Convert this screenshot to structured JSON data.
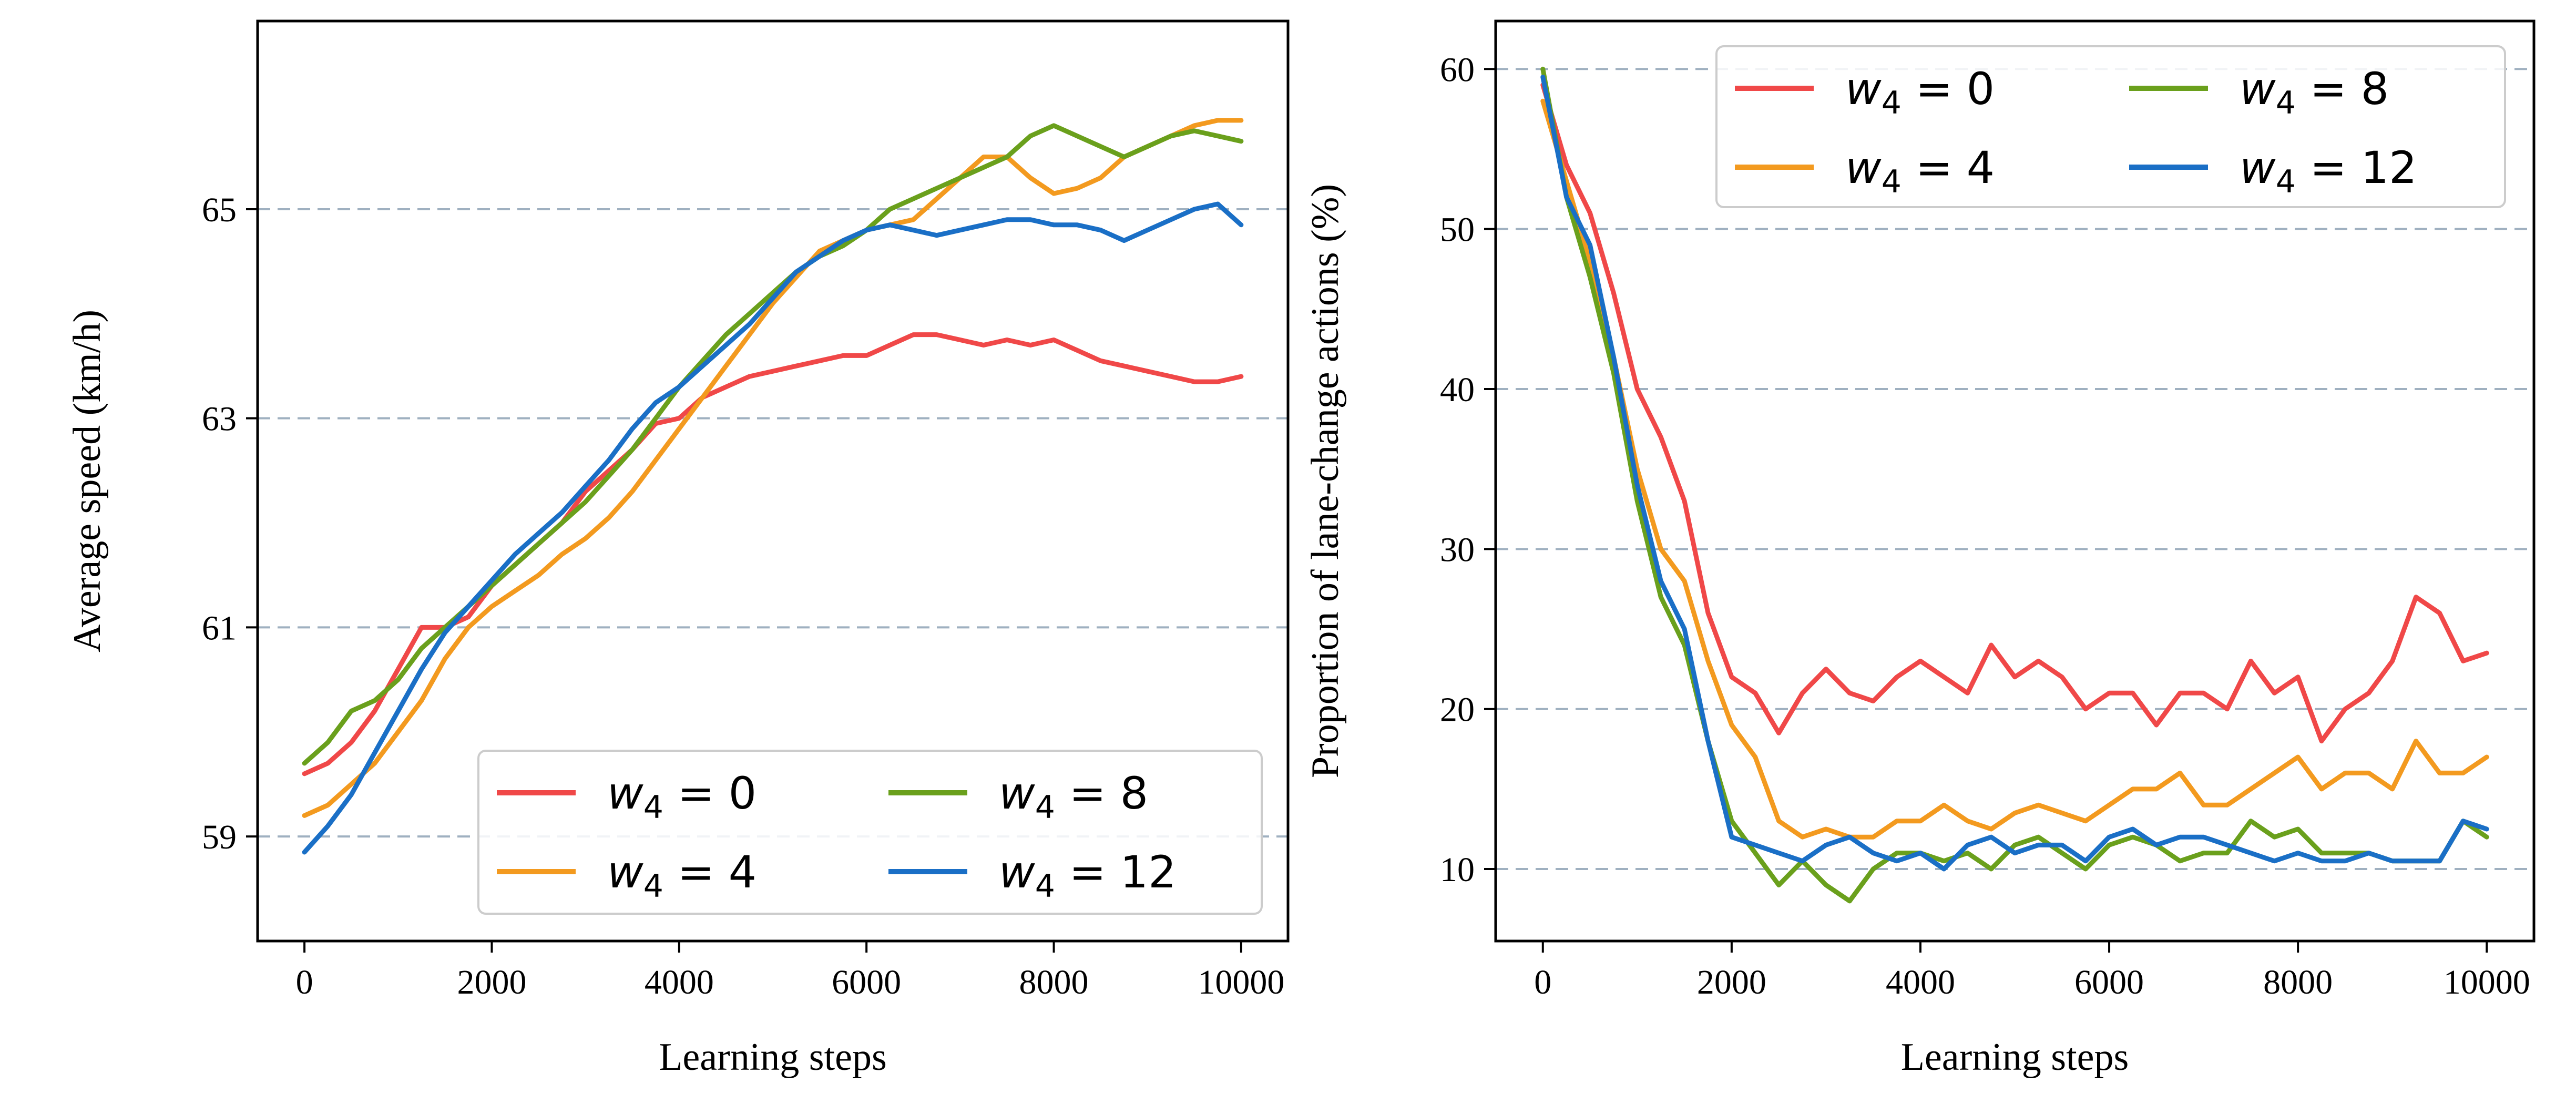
{
  "chart_data": [
    {
      "type": "line",
      "xlabel": "Learning steps",
      "ylabel": "Average speed (km/h)",
      "xlim": [
        -500,
        10500
      ],
      "ylim": [
        58.0,
        66.8
      ],
      "xticks": [
        0,
        2000,
        4000,
        6000,
        8000,
        10000
      ],
      "yticks": [
        59,
        61,
        63,
        65
      ],
      "grid": "horizontal dashed",
      "legend_position": "lower-right",
      "legend_columns": 2,
      "series": [
        {
          "name": "w4 = 0",
          "legend_base": "w",
          "legend_sub": "4",
          "legend_rest": " = 0",
          "color": "#f04848",
          "x": [
            0,
            250,
            500,
            750,
            1000,
            1250,
            1500,
            1750,
            2000,
            2250,
            2500,
            2750,
            3000,
            3250,
            3500,
            3750,
            4000,
            4250,
            4500,
            4750,
            5000,
            5250,
            5500,
            5750,
            6000,
            6250,
            6500,
            6750,
            7000,
            7250,
            7500,
            7750,
            8000,
            8250,
            8500,
            8750,
            9000,
            9250,
            9500,
            9750,
            10000
          ],
          "y": [
            59.6,
            59.7,
            59.9,
            60.2,
            60.6,
            61.0,
            61.0,
            61.1,
            61.4,
            61.6,
            61.8,
            62.0,
            62.3,
            62.5,
            62.7,
            62.95,
            63.0,
            63.2,
            63.3,
            63.4,
            63.45,
            63.5,
            63.55,
            63.6,
            63.6,
            63.7,
            63.8,
            63.8,
            63.75,
            63.7,
            63.75,
            63.7,
            63.75,
            63.65,
            63.55,
            63.5,
            63.45,
            63.4,
            63.35,
            63.35,
            63.4
          ]
        },
        {
          "name": "w4 = 4",
          "legend_base": "w",
          "legend_sub": "4",
          "legend_rest": " = 4",
          "color": "#f39a1f",
          "x": [
            0,
            250,
            500,
            750,
            1000,
            1250,
            1500,
            1750,
            2000,
            2250,
            2500,
            2750,
            3000,
            3250,
            3500,
            3750,
            4000,
            4250,
            4500,
            4750,
            5000,
            5250,
            5500,
            5750,
            6000,
            6250,
            6500,
            6750,
            7000,
            7250,
            7500,
            7750,
            8000,
            8250,
            8500,
            8750,
            9000,
            9250,
            9500,
            9750,
            10000
          ],
          "y": [
            59.2,
            59.3,
            59.5,
            59.7,
            60.0,
            60.3,
            60.7,
            61.0,
            61.2,
            61.35,
            61.5,
            61.7,
            61.85,
            62.05,
            62.3,
            62.6,
            62.9,
            63.2,
            63.5,
            63.8,
            64.1,
            64.35,
            64.6,
            64.7,
            64.8,
            64.85,
            64.9,
            65.1,
            65.3,
            65.5,
            65.5,
            65.3,
            65.15,
            65.2,
            65.3,
            65.5,
            65.6,
            65.7,
            65.8,
            65.85,
            65.85
          ]
        },
        {
          "name": "w4 = 8",
          "legend_base": "w",
          "legend_sub": "4",
          "legend_rest": " = 8",
          "color": "#6aa01c",
          "x": [
            0,
            250,
            500,
            750,
            1000,
            1250,
            1500,
            1750,
            2000,
            2250,
            2500,
            2750,
            3000,
            3250,
            3500,
            3750,
            4000,
            4250,
            4500,
            4750,
            5000,
            5250,
            5500,
            5750,
            6000,
            6250,
            6500,
            6750,
            7000,
            7250,
            7500,
            7750,
            8000,
            8250,
            8500,
            8750,
            9000,
            9250,
            9500,
            9750,
            10000
          ],
          "y": [
            59.7,
            59.9,
            60.2,
            60.3,
            60.5,
            60.8,
            61.0,
            61.2,
            61.4,
            61.6,
            61.8,
            62.0,
            62.2,
            62.45,
            62.7,
            63.0,
            63.3,
            63.55,
            63.8,
            64.0,
            64.2,
            64.4,
            64.55,
            64.65,
            64.8,
            65.0,
            65.1,
            65.2,
            65.3,
            65.4,
            65.5,
            65.7,
            65.8,
            65.7,
            65.6,
            65.5,
            65.6,
            65.7,
            65.75,
            65.7,
            65.65
          ]
        },
        {
          "name": "w4 = 12",
          "legend_base": "w",
          "legend_sub": "4",
          "legend_rest": " = 12",
          "color": "#1a6fc6",
          "x": [
            0,
            250,
            500,
            750,
            1000,
            1250,
            1500,
            1750,
            2000,
            2250,
            2500,
            2750,
            3000,
            3250,
            3500,
            3750,
            4000,
            4250,
            4500,
            4750,
            5000,
            5250,
            5500,
            5750,
            6000,
            6250,
            6500,
            6750,
            7000,
            7250,
            7500,
            7750,
            8000,
            8250,
            8500,
            8750,
            9000,
            9250,
            9500,
            9750,
            10000
          ],
          "y": [
            58.85,
            59.1,
            59.4,
            59.8,
            60.2,
            60.6,
            60.95,
            61.2,
            61.45,
            61.7,
            61.9,
            62.1,
            62.35,
            62.6,
            62.9,
            63.15,
            63.3,
            63.5,
            63.7,
            63.9,
            64.15,
            64.4,
            64.55,
            64.7,
            64.8,
            64.85,
            64.8,
            64.75,
            64.8,
            64.85,
            64.9,
            64.9,
            64.85,
            64.85,
            64.8,
            64.7,
            64.8,
            64.9,
            65.0,
            65.05,
            64.85
          ]
        }
      ]
    },
    {
      "type": "line",
      "xlabel": "Learning steps",
      "ylabel": "Proportion of lane-change actions (%)",
      "xlim": [
        -500,
        10500
      ],
      "ylim": [
        5.5,
        63.0
      ],
      "xticks": [
        0,
        2000,
        4000,
        6000,
        8000,
        10000
      ],
      "yticks": [
        10,
        20,
        30,
        40,
        50,
        60
      ],
      "grid": "horizontal dashed",
      "legend_position": "top-right",
      "legend_columns": 2,
      "series": [
        {
          "name": "w4 = 0",
          "legend_base": "w",
          "legend_sub": "4",
          "legend_rest": " = 0",
          "color": "#f04848",
          "x": [
            0,
            250,
            500,
            750,
            1000,
            1250,
            1500,
            1750,
            2000,
            2250,
            2500,
            2750,
            3000,
            3250,
            3500,
            3750,
            4000,
            4250,
            4500,
            4750,
            5000,
            5250,
            5500,
            5750,
            6000,
            6250,
            6500,
            6750,
            7000,
            7250,
            7500,
            7750,
            8000,
            8250,
            8500,
            8750,
            9000,
            9250,
            9500,
            9750,
            10000
          ],
          "y": [
            59,
            54,
            51,
            46,
            40,
            37,
            33,
            26,
            22,
            21,
            18.5,
            21,
            22.5,
            21,
            20.5,
            22,
            23,
            22,
            21,
            24,
            22,
            23,
            22,
            20,
            21,
            21,
            19,
            21,
            21,
            20,
            23,
            21,
            22,
            18,
            20,
            21,
            23,
            27,
            26,
            23,
            23.5
          ]
        },
        {
          "name": "w4 = 4",
          "legend_base": "w",
          "legend_sub": "4",
          "legend_rest": " = 4",
          "color": "#f39a1f",
          "x": [
            0,
            250,
            500,
            750,
            1000,
            1250,
            1500,
            1750,
            2000,
            2250,
            2500,
            2750,
            3000,
            3250,
            3500,
            3750,
            4000,
            4250,
            4500,
            4750,
            5000,
            5250,
            5500,
            5750,
            6000,
            6250,
            6500,
            6750,
            7000,
            7250,
            7500,
            7750,
            8000,
            8250,
            8500,
            8750,
            9000,
            9250,
            9500,
            9750,
            10000
          ],
          "y": [
            58,
            53,
            48,
            42,
            35,
            30,
            28,
            23,
            19,
            17,
            13,
            12,
            12.5,
            12,
            12,
            13,
            13,
            14,
            13,
            12.5,
            13.5,
            14,
            13.5,
            13,
            14,
            15,
            15,
            16,
            14,
            14,
            15,
            16,
            17,
            15,
            16,
            16,
            15,
            18,
            16,
            16,
            17
          ]
        },
        {
          "name": "w4 = 8",
          "legend_base": "w",
          "legend_sub": "4",
          "legend_rest": " = 8",
          "color": "#6aa01c",
          "x": [
            0,
            250,
            500,
            750,
            1000,
            1250,
            1500,
            1750,
            2000,
            2250,
            2500,
            2750,
            3000,
            3250,
            3500,
            3750,
            4000,
            4250,
            4500,
            4750,
            5000,
            5250,
            5500,
            5750,
            6000,
            6250,
            6500,
            6750,
            7000,
            7250,
            7500,
            7750,
            8000,
            8250,
            8500,
            8750,
            9000,
            9250,
            9500,
            9750,
            10000
          ],
          "y": [
            60,
            52,
            47,
            41,
            33,
            27,
            24,
            18,
            13,
            11,
            9,
            10.5,
            9,
            8,
            10,
            11,
            11,
            10.5,
            11,
            10,
            11.5,
            12,
            11,
            10,
            11.5,
            12,
            11.5,
            10.5,
            11,
            11,
            13,
            12,
            12.5,
            11,
            11,
            11,
            10.5,
            10.5,
            10.5,
            13,
            12
          ]
        },
        {
          "name": "w4 = 12",
          "legend_base": "w",
          "legend_sub": "4",
          "legend_rest": " = 12",
          "color": "#1a6fc6",
          "x": [
            0,
            250,
            500,
            750,
            1000,
            1250,
            1500,
            1750,
            2000,
            2250,
            2500,
            2750,
            3000,
            3250,
            3500,
            3750,
            4000,
            4250,
            4500,
            4750,
            5000,
            5250,
            5500,
            5750,
            6000,
            6250,
            6500,
            6750,
            7000,
            7250,
            7500,
            7750,
            8000,
            8250,
            8500,
            8750,
            9000,
            9250,
            9500,
            9750,
            10000
          ],
          "y": [
            59.5,
            52,
            49,
            42,
            34,
            28,
            25,
            18,
            12,
            11.5,
            11,
            10.5,
            11.5,
            12,
            11,
            10.5,
            11,
            10,
            11.5,
            12,
            11,
            11.5,
            11.5,
            10.5,
            12,
            12.5,
            11.5,
            12,
            12,
            11.5,
            11,
            10.5,
            11,
            10.5,
            10.5,
            11,
            10.5,
            10.5,
            10.5,
            13,
            12.5
          ]
        }
      ]
    }
  ]
}
